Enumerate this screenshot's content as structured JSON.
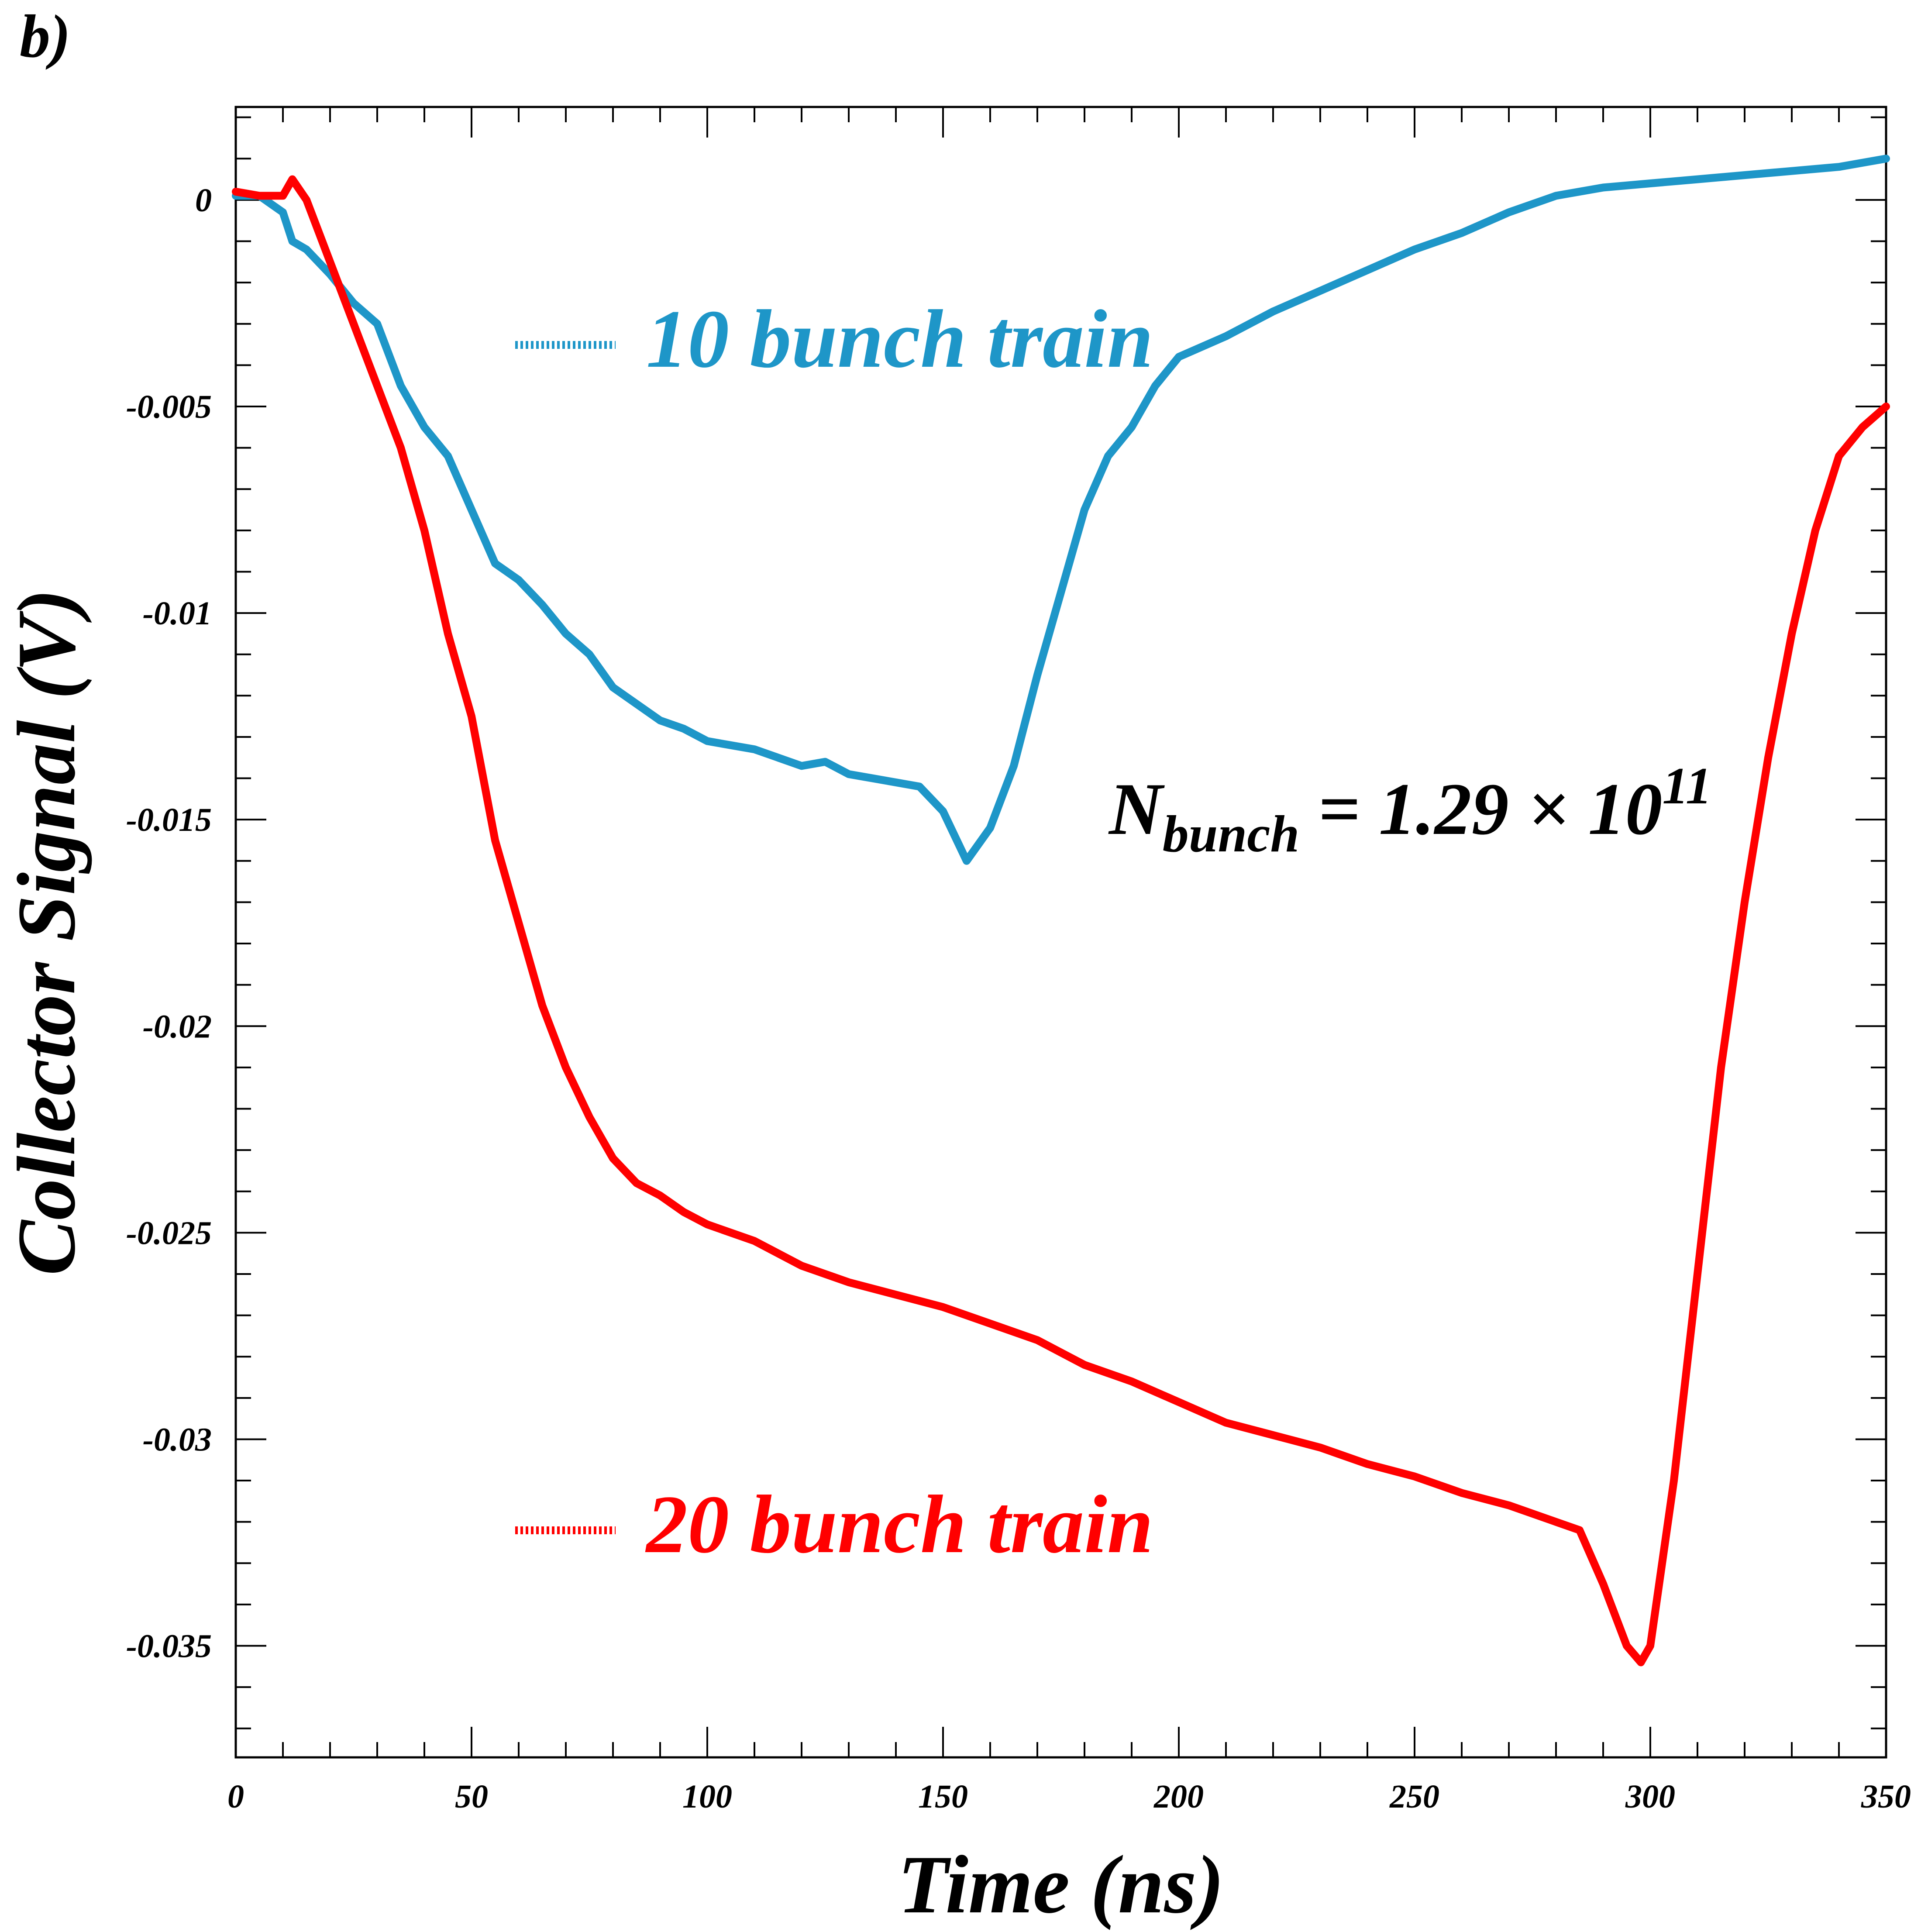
{
  "panel_label": "b)",
  "colors": {
    "series_10": "#1E96C8",
    "series_20": "#FF0000",
    "axis": "#000000"
  },
  "chart_data": {
    "type": "line",
    "title": "",
    "xlabel": "Time (ns)",
    "ylabel": "Collector Signal (V)",
    "xlim": [
      0,
      350
    ],
    "ylim": [
      -0.0377,
      0.00225
    ],
    "x_ticks": [
      0,
      50,
      100,
      150,
      200,
      250,
      300,
      350
    ],
    "x_tick_labels": [
      "0",
      "50",
      "100",
      "150",
      "200",
      "250",
      "300",
      "350"
    ],
    "y_ticks": [
      0,
      -0.005,
      -0.01,
      -0.015,
      -0.02,
      -0.025,
      -0.03,
      -0.035
    ],
    "y_tick_labels": [
      "0",
      "-0.005",
      "-0.01",
      "-0.015",
      "-0.02",
      "-0.025",
      "-0.03",
      "-0.035"
    ],
    "grid": false,
    "legend_position": "inside, left (upper and lower)",
    "series": [
      {
        "name": "10 bunch train",
        "color": "#1E96C8",
        "x": [
          0,
          5,
          10,
          12,
          15,
          20,
          25,
          30,
          35,
          40,
          45,
          50,
          55,
          60,
          65,
          70,
          75,
          80,
          85,
          90,
          95,
          100,
          105,
          110,
          115,
          120,
          125,
          130,
          135,
          140,
          145,
          150,
          155,
          160,
          165,
          170,
          175,
          180,
          185,
          190,
          195,
          200,
          210,
          220,
          230,
          240,
          250,
          260,
          270,
          280,
          290,
          300,
          310,
          320,
          330,
          340,
          350
        ],
        "y": [
          0.0001,
          0.0001,
          -0.0003,
          -0.001,
          -0.0012,
          -0.0018,
          -0.0025,
          -0.003,
          -0.0045,
          -0.0055,
          -0.0062,
          -0.0075,
          -0.0088,
          -0.0092,
          -0.0098,
          -0.0105,
          -0.011,
          -0.0118,
          -0.0122,
          -0.0126,
          -0.0128,
          -0.0131,
          -0.0132,
          -0.0133,
          -0.0135,
          -0.0137,
          -0.0136,
          -0.0139,
          -0.014,
          -0.0141,
          -0.0142,
          -0.0148,
          -0.016,
          -0.0152,
          -0.0137,
          -0.0115,
          -0.0095,
          -0.0075,
          -0.0062,
          -0.0055,
          -0.0045,
          -0.0038,
          -0.0033,
          -0.0027,
          -0.0022,
          -0.0017,
          -0.0012,
          -0.0008,
          -0.0003,
          0.0001,
          0.0003,
          0.0004,
          0.0005,
          0.0006,
          0.0007,
          0.0008,
          0.001
        ]
      },
      {
        "name": "20 bunch train",
        "color": "#FF0000",
        "x": [
          0,
          5,
          10,
          12,
          15,
          20,
          25,
          30,
          35,
          40,
          45,
          50,
          55,
          60,
          65,
          70,
          75,
          80,
          85,
          90,
          95,
          100,
          110,
          120,
          130,
          140,
          150,
          160,
          170,
          180,
          190,
          200,
          210,
          220,
          230,
          240,
          250,
          260,
          270,
          280,
          285,
          290,
          295,
          298,
          300,
          305,
          310,
          315,
          320,
          325,
          330,
          335,
          340,
          345,
          350
        ],
        "y": [
          0.0002,
          0.0001,
          0.0001,
          0.0005,
          0.0,
          -0.0015,
          -0.003,
          -0.0045,
          -0.006,
          -0.008,
          -0.0105,
          -0.0125,
          -0.0155,
          -0.0175,
          -0.0195,
          -0.021,
          -0.0222,
          -0.0232,
          -0.0238,
          -0.0241,
          -0.0245,
          -0.0248,
          -0.0252,
          -0.0258,
          -0.0262,
          -0.0265,
          -0.0268,
          -0.0272,
          -0.0276,
          -0.0282,
          -0.0286,
          -0.0291,
          -0.0296,
          -0.0299,
          -0.0302,
          -0.0306,
          -0.0309,
          -0.0313,
          -0.0316,
          -0.032,
          -0.0322,
          -0.0335,
          -0.035,
          -0.0354,
          -0.035,
          -0.031,
          -0.026,
          -0.021,
          -0.017,
          -0.0135,
          -0.0105,
          -0.008,
          -0.0062,
          -0.0055,
          -0.005
        ]
      }
    ],
    "annotation": {
      "prefix": "N",
      "subscript": "bunch",
      "eq": " = 1.29 × 10",
      "superscript": "11"
    }
  }
}
